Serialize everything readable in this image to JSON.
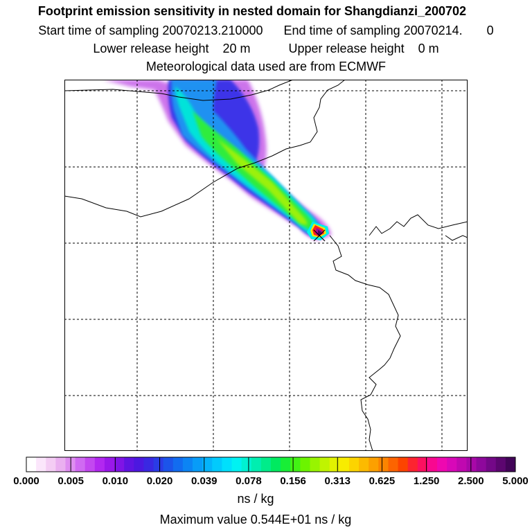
{
  "header": {
    "title": "Footprint emission sensitivity in nested domain for Shangdianzi_200702",
    "sampling": "Start time of sampling 20070213.210000      End time of sampling 20070214.       0",
    "release": "Lower release height    20 m           Upper release height    0 m",
    "met": "Meteorological data used are from ECMWF"
  },
  "colorbar": {
    "tick_labels": [
      "0.000",
      "0.005",
      "0.010",
      "0.020",
      "0.039",
      "0.078",
      "0.156",
      "0.313",
      "0.625",
      "1.250",
      "2.500",
      "5.000"
    ],
    "colors": [
      "#ffffff",
      "#fbe6fb",
      "#f4cdf4",
      "#eab0f0",
      "#de8ef0",
      "#d06af2",
      "#c348f0",
      "#b228f0",
      "#9a18ea",
      "#8014e6",
      "#6014e2",
      "#4c18e0",
      "#3a28e2",
      "#2a3ce6",
      "#1c54ea",
      "#126cf0",
      "#0c84f4",
      "#089cf8",
      "#04b4fa",
      "#02cafc",
      "#00e0fc",
      "#00f2f2",
      "#00f2d2",
      "#00eeb0",
      "#00ec8a",
      "#00ea60",
      "#18ee36",
      "#42f214",
      "#6cf400",
      "#98f400",
      "#c0f400",
      "#e2f200",
      "#f8ec00",
      "#fcd400",
      "#fcba00",
      "#fca000",
      "#fc8400",
      "#fc6400",
      "#fc4400",
      "#fc2430",
      "#fc1060",
      "#f80890",
      "#ee08b0",
      "#d808b8",
      "#c008b0",
      "#a808a8",
      "#8e089c",
      "#740888",
      "#5c0670",
      "#420458"
    ],
    "unit": "ns / kg",
    "max_value": "Maximum value  0.544E+01 ns / kg"
  },
  "map": {
    "release_site_marker": "receptor-cross",
    "plume_peak_value": "0.544E+01",
    "frame_color": "#000000",
    "gridline_style": "dashed"
  }
}
